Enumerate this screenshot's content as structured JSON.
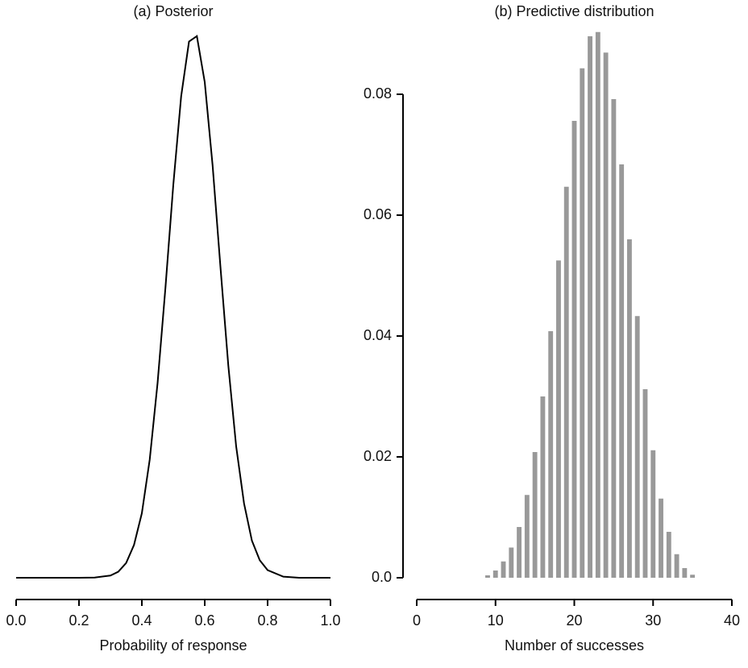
{
  "chart_data": [
    {
      "type": "line",
      "title": "(a) Posterior",
      "x_label": "Probability of response",
      "x": [
        0,
        0.2,
        0.25,
        0.3,
        0.325,
        0.35,
        0.375,
        0.4,
        0.425,
        0.45,
        0.475,
        0.5,
        0.525,
        0.55,
        0.575,
        0.6,
        0.625,
        0.65,
        0.675,
        0.7,
        0.725,
        0.75,
        0.775,
        0.8,
        0.85,
        0.9,
        1
      ],
      "values": [
        0,
        0,
        0.002,
        0.02,
        0.055,
        0.135,
        0.3,
        0.59,
        1.08,
        1.78,
        2.65,
        3.59,
        4.4,
        4.9,
        4.95,
        4.53,
        3.77,
        2.84,
        1.94,
        1.2,
        0.68,
        0.34,
        0.16,
        0.07,
        0.01,
        0,
        0
      ],
      "color": "#000000",
      "xlim": [
        0,
        1
      ],
      "ylim": [
        0,
        5
      ],
      "xticks": [
        {
          "value": 0,
          "label": "0.0"
        },
        0.2,
        0.4,
        0.6,
        0.8,
        {
          "value": 1,
          "label": "1.0"
        }
      ]
    },
    {
      "type": "bar",
      "title": "(b) Predictive distribution",
      "x_label": "Number of successes",
      "x": [
        9,
        10,
        11,
        12,
        13,
        14,
        15,
        16,
        17,
        18,
        19,
        20,
        21,
        22,
        23,
        24,
        25,
        26,
        27,
        28,
        29,
        30,
        31,
        32,
        33,
        34,
        35
      ],
      "values": [
        0.0004,
        0.0012,
        0.0027,
        0.005,
        0.0084,
        0.0137,
        0.0208,
        0.03,
        0.0408,
        0.0525,
        0.0647,
        0.0756,
        0.0843,
        0.0896,
        0.0903,
        0.0869,
        0.0792,
        0.0684,
        0.056,
        0.0433,
        0.0312,
        0.0211,
        0.0131,
        0.0076,
        0.0039,
        0.0016,
        0.0005
      ],
      "color": "#999999",
      "xlim": [
        0,
        40
      ],
      "ylim": [
        0,
        0.09
      ],
      "xticks": [
        0,
        10,
        20,
        30,
        40
      ],
      "yticks": [
        {
          "value": 0,
          "label": "0.0"
        },
        0.02,
        0.04,
        0.06,
        0.08
      ]
    }
  ]
}
